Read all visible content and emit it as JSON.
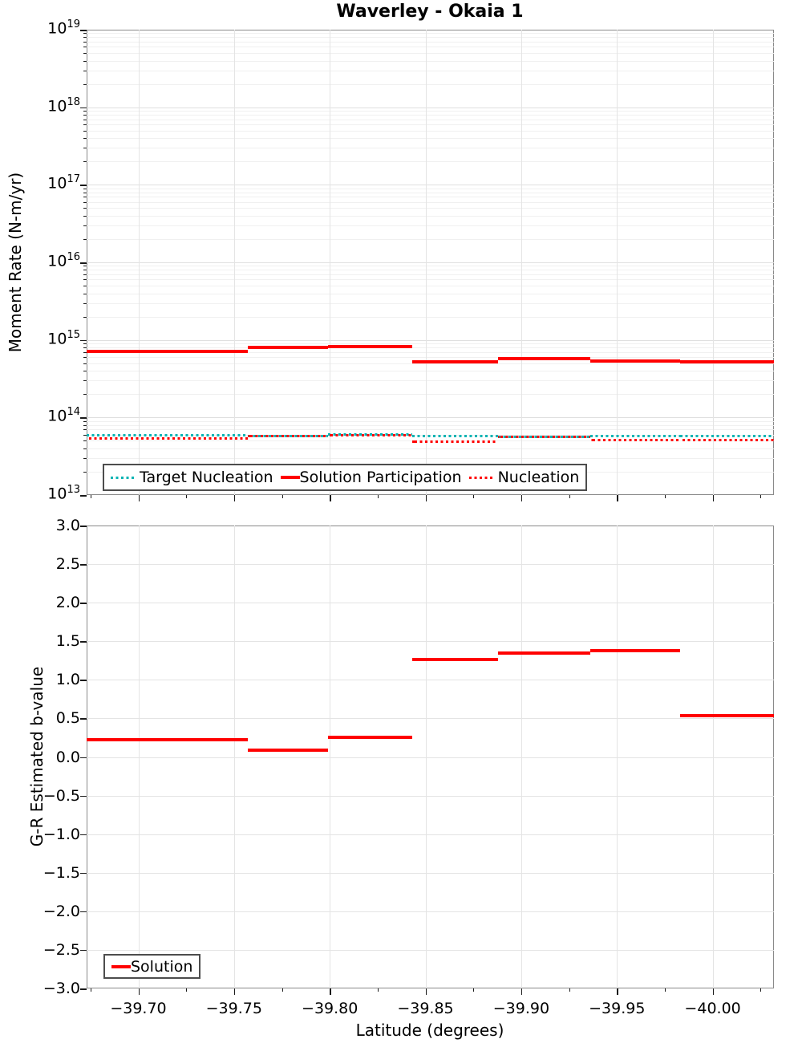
{
  "title": "Waverley - Okaia 1",
  "colors": {
    "solution_red": "#ff0000",
    "target_teal": "#00b4b4",
    "grid_minor": "#f0f0f0",
    "grid_major": "#dfdfdf",
    "grid_vertical": "#e4e4e4",
    "axis_border": "#8a8a8a",
    "tick_mark": "#1a1a1a"
  },
  "chart_data": [
    {
      "type": "line",
      "subtype": "step-segments",
      "title": "Waverley - Okaia 1",
      "ylabel": "Moment Rate (N-m/yr)",
      "xlabel": "Latitude (degrees)",
      "yscale": "log",
      "ylim": [
        10000000000000.0,
        1e+19
      ],
      "xlim": [
        -39.673,
        -40.032
      ],
      "grid": true,
      "legend_position": "lower left",
      "y_tick_exponents": [
        19,
        18,
        17,
        16,
        15,
        14,
        13
      ],
      "x_ticks": [
        -39.7,
        -39.75,
        -39.8,
        -39.85,
        -39.9,
        -39.95,
        -40.0
      ],
      "x_tick_labels": [
        "−39.70",
        "−39.75",
        "−39.80",
        "−39.85",
        "−39.90",
        "−39.95",
        "−40.00"
      ],
      "section_edges": [
        -39.673,
        -39.757,
        -39.799,
        -39.843,
        -39.888,
        -39.936,
        -39.983,
        -40.032
      ],
      "series": [
        {
          "name": "Target Nucleation",
          "style": "dotted",
          "color": "#00b4b4",
          "values": [
            59000000000000.0,
            58000000000000.0,
            61000000000000.0,
            58000000000000.0,
            56000000000000.0,
            58000000000000.0,
            58000000000000.0
          ]
        },
        {
          "name": "Solution Participation",
          "style": "solid",
          "color": "#ff0000",
          "values": [
            710000000000000.0,
            800000000000000.0,
            830000000000000.0,
            520000000000000.0,
            570000000000000.0,
            540000000000000.0,
            520000000000000.0
          ]
        },
        {
          "name": "Nucleation",
          "style": "dotted",
          "color": "#ff0000",
          "values": [
            54000000000000.0,
            58000000000000.0,
            59000000000000.0,
            49000000000000.0,
            56000000000000.0,
            51000000000000.0,
            51000000000000.0
          ]
        }
      ]
    },
    {
      "type": "line",
      "subtype": "step-segments",
      "ylabel": "G-R Estimated b-value",
      "xlabel": "Latitude (degrees)",
      "ylim": [
        -3.0,
        3.0
      ],
      "xlim": [
        -39.673,
        -40.032
      ],
      "grid": true,
      "legend_position": "lower left",
      "y_ticks": [
        3.0,
        2.5,
        2.0,
        1.5,
        1.0,
        0.5,
        0.0,
        -0.5,
        -1.0,
        -1.5,
        -2.0,
        -2.5,
        -3.0
      ],
      "y_tick_labels": [
        "3.0",
        "2.5",
        "2.0",
        "1.5",
        "1.0",
        "0.5",
        "0.0",
        "−0.5",
        "−1.0",
        "−1.5",
        "−2.0",
        "−2.5",
        "−3.0"
      ],
      "x_ticks": [
        -39.7,
        -39.75,
        -39.8,
        -39.85,
        -39.9,
        -39.95,
        -40.0
      ],
      "x_tick_labels": [
        "−39.70",
        "−39.75",
        "−39.80",
        "−39.85",
        "−39.90",
        "−39.95",
        "−40.00"
      ],
      "section_edges": [
        -39.673,
        -39.757,
        -39.799,
        -39.843,
        -39.888,
        -39.936,
        -39.983,
        -40.032
      ],
      "series": [
        {
          "name": "Solution",
          "style": "solid",
          "color": "#ff0000",
          "values": [
            0.22,
            0.09,
            0.26,
            1.26,
            1.35,
            1.38,
            0.54
          ]
        }
      ]
    }
  ]
}
